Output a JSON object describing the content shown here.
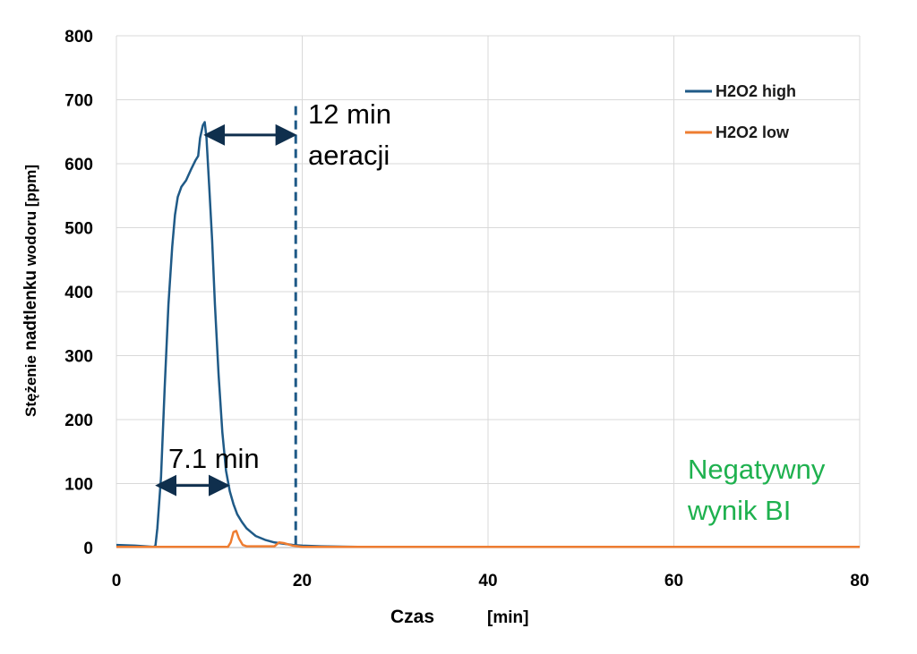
{
  "chart_data": {
    "type": "line",
    "xlabel": "Czas",
    "xlabel_unit": "[min]",
    "ylabel_prefix": "Stężenie",
    "ylabel_main": "nadtlenku",
    "ylabel_suffix": "wodoru [ppm]",
    "xlim": [
      0,
      80
    ],
    "ylim": [
      0,
      800
    ],
    "x_ticks": [
      "0",
      "20",
      "40",
      "60",
      "80"
    ],
    "y_ticks": [
      "0",
      "100",
      "200",
      "300",
      "400",
      "500",
      "600",
      "700",
      "800"
    ],
    "grid": true,
    "legend_position": "top-right",
    "series": [
      {
        "name": "H2O2 high",
        "color": "#1f5a87",
        "points": [
          [
            0,
            4
          ],
          [
            2,
            3
          ],
          [
            4,
            1
          ],
          [
            4.2,
            3
          ],
          [
            4.4,
            30
          ],
          [
            4.8,
            110
          ],
          [
            5.2,
            250
          ],
          [
            5.6,
            380
          ],
          [
            6,
            470
          ],
          [
            6.3,
            520
          ],
          [
            6.6,
            548
          ],
          [
            7,
            564
          ],
          [
            7.5,
            574
          ],
          [
            8,
            590
          ],
          [
            8.5,
            605
          ],
          [
            8.8,
            612
          ],
          [
            9,
            640
          ],
          [
            9.3,
            660
          ],
          [
            9.5,
            665
          ],
          [
            9.7,
            640
          ],
          [
            10,
            560
          ],
          [
            10.3,
            480
          ],
          [
            10.6,
            380
          ],
          [
            11,
            270
          ],
          [
            11.4,
            180
          ],
          [
            11.8,
            120
          ],
          [
            12.2,
            88
          ],
          [
            12.6,
            68
          ],
          [
            13,
            52
          ],
          [
            13.5,
            40
          ],
          [
            14,
            30
          ],
          [
            14.5,
            24
          ],
          [
            15,
            18
          ],
          [
            16,
            12
          ],
          [
            17,
            8
          ],
          [
            18,
            6
          ],
          [
            19,
            4
          ],
          [
            20,
            3
          ],
          [
            22,
            2
          ],
          [
            26,
            1
          ],
          [
            80,
            1
          ]
        ]
      },
      {
        "name": "H2O2 low",
        "color": "#ee7d31",
        "points": [
          [
            0,
            1
          ],
          [
            12,
            1
          ],
          [
            12.3,
            8
          ],
          [
            12.6,
            24
          ],
          [
            12.9,
            26
          ],
          [
            13.2,
            14
          ],
          [
            13.6,
            4
          ],
          [
            14,
            2
          ],
          [
            17,
            2
          ],
          [
            17.5,
            8
          ],
          [
            18,
            7
          ],
          [
            19,
            3
          ],
          [
            20,
            1
          ],
          [
            80,
            1
          ]
        ]
      }
    ],
    "aeration_line_x": 19.3,
    "annotations": {
      "aeration_label_1": "12 min",
      "aeration_label_2": "aeracji",
      "aeration_arrow": [
        9.8,
        19.0
      ],
      "aeration_arrow_y": 645,
      "exposure_label": "7.1 min",
      "exposure_arrow": [
        4.6,
        11.8
      ],
      "exposure_arrow_y": 97,
      "result_label_1": "Negatywny",
      "result_label_2": "wynik BI",
      "result_color": "#1fb14f",
      "arrow_color": "#0f2f4d"
    }
  }
}
